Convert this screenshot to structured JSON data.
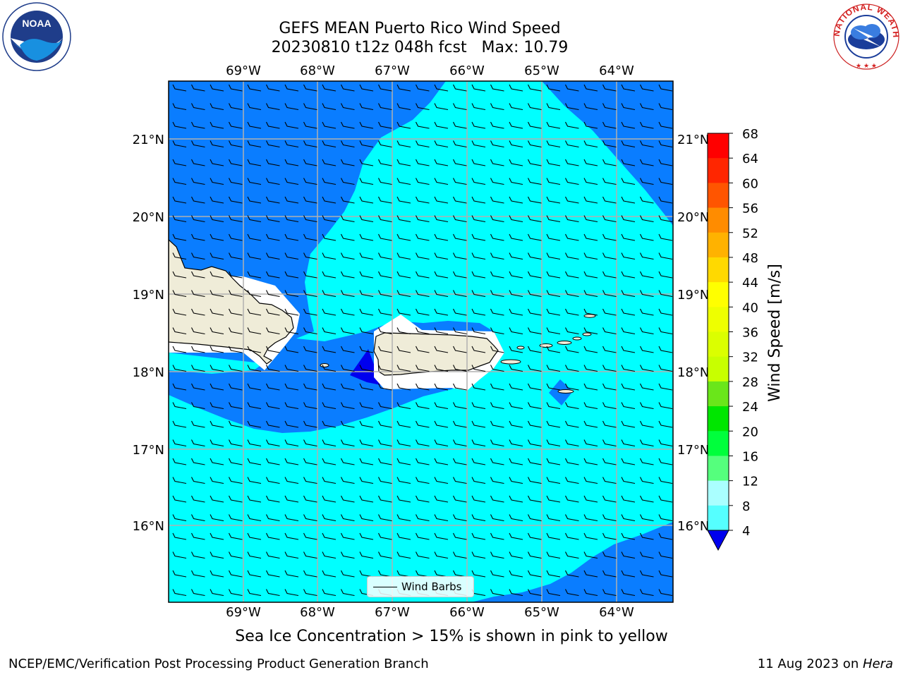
{
  "header": {
    "title_line1": "GEFS MEAN Puerto Rico Wind Speed",
    "title_line2": "20230810 t12z 048h fcst   Max: 10.79"
  },
  "logos": {
    "left": {
      "text": "NOAA",
      "ring_text": "NATIONAL OCEANIC AND ATMOSPHERIC ADMINISTRATION • U.S. DEPARTMENT OF COMMERCE"
    },
    "right": {
      "ring_text": "NATIONAL WEATHER SERVICE"
    }
  },
  "map": {
    "lon_labels": [
      "69°W",
      "68°W",
      "67°W",
      "66°W",
      "65°W",
      "64°W"
    ],
    "lat_labels": [
      "21°N",
      "20°N",
      "19°N",
      "18°N",
      "17°N",
      "16°N"
    ],
    "colors": {
      "land": "#efecd8",
      "band_4_8": "#0a7dff",
      "band_8_12": "#00ffff",
      "below_4": "#0000ee",
      "gridline": "#b0b0b0"
    }
  },
  "legend": {
    "label": "Wind Barbs"
  },
  "colorbar": {
    "label": "Wind Speed [m/s]",
    "ticks": [
      "68",
      "64",
      "60",
      "56",
      "52",
      "48",
      "44",
      "40",
      "36",
      "32",
      "28",
      "24",
      "20",
      "16",
      "12",
      "8",
      "4"
    ],
    "extend_color": "#0000ee",
    "band_colors": [
      "#ff0000",
      "#ff2600",
      "#ff5500",
      "#ff8c00",
      "#ffb200",
      "#ffd900",
      "#ffff00",
      "#eeff00",
      "#dbff00",
      "#c8ff00",
      "#6ae61a",
      "#00e600",
      "#00ff3c",
      "#55ff7d",
      "#aaffff",
      "#55ffff",
      "#00ffff",
      "#0a7dff"
    ]
  },
  "note": "Sea Ice Concentration > 15% is shown in pink to yellow",
  "footer": {
    "left": "NCEP/EMC/Verification Post Processing Product Generation Branch",
    "right_prefix": "11 Aug 2023 on ",
    "right_machine": "Hera"
  }
}
